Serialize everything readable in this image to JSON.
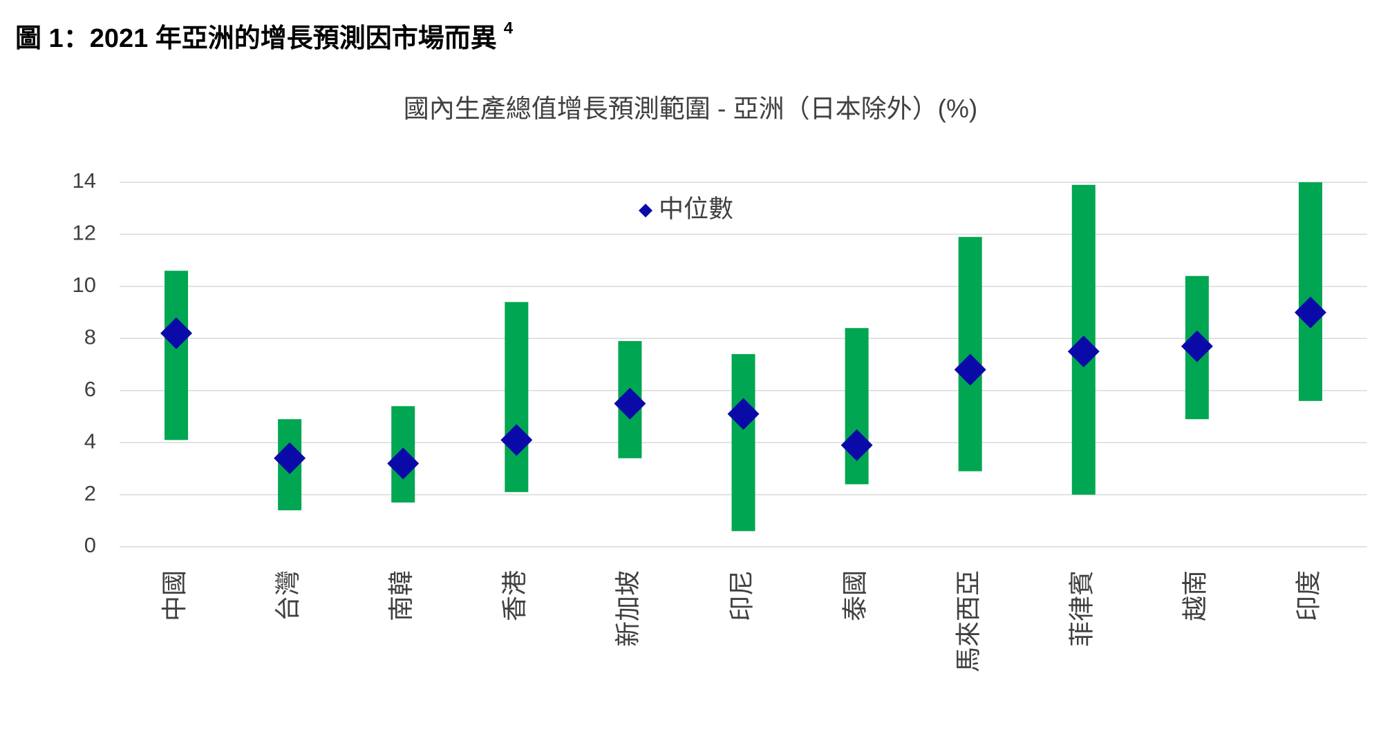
{
  "heading": "圖 1：2021 年亞洲的增長預測因市場而異",
  "footnote_ref": "4",
  "chart_data": {
    "type": "range",
    "title": "國內生產總值增長預測範圍 - 亞洲（日本除外）(%)",
    "categories": [
      "中國",
      "台灣",
      "南韓",
      "香港",
      "新加坡",
      "印尼",
      "泰國",
      "馬來西亞",
      "菲律賓",
      "越南",
      "印度"
    ],
    "low": [
      4.1,
      1.4,
      1.7,
      2.1,
      3.4,
      0.6,
      2.4,
      2.9,
      2.0,
      4.9,
      5.6
    ],
    "high": [
      10.6,
      4.9,
      5.4,
      9.4,
      7.9,
      7.4,
      8.4,
      11.9,
      13.9,
      10.4,
      14.0
    ],
    "range_color": "#00a651",
    "series": [
      {
        "name": "中位數",
        "color": "#0a0aa8",
        "values": [
          8.2,
          3.4,
          3.2,
          4.1,
          5.5,
          5.1,
          3.9,
          6.8,
          7.5,
          7.7,
          9.0
        ]
      }
    ],
    "ylim": [
      0,
      14
    ],
    "yticks": [
      0,
      2,
      4,
      6,
      8,
      10,
      12,
      14
    ],
    "grid": true
  }
}
